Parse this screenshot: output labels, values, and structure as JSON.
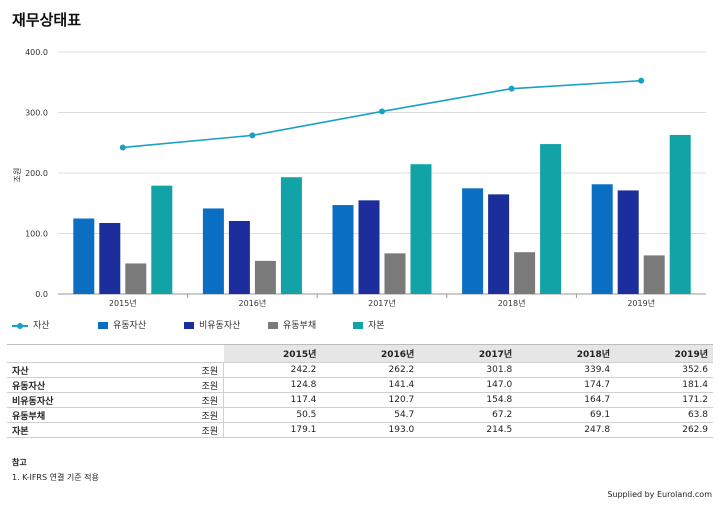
{
  "title": "재무상태표",
  "chart_data": {
    "type": "bar",
    "categories": [
      "2015년",
      "2016년",
      "2017년",
      "2018년",
      "2019년"
    ],
    "ylabel": "조원",
    "ylim": [
      0,
      400
    ],
    "yticks": [
      "0.0",
      "100.0",
      "200.0",
      "300.0",
      "400.0"
    ],
    "grid": true,
    "legend_position": "bottom",
    "line_series": {
      "name": "자산",
      "color": "#1aa0c4",
      "values": [
        242.2,
        262.2,
        301.8,
        339.4,
        352.6
      ]
    },
    "series": [
      {
        "name": "유동자산",
        "color": "#0a6fc2",
        "values": [
          124.8,
          141.4,
          147.0,
          174.7,
          181.4
        ]
      },
      {
        "name": "비유동자산",
        "color": "#1c2e9b",
        "values": [
          117.4,
          120.7,
          154.8,
          164.7,
          171.2
        ]
      },
      {
        "name": "유동부채",
        "color": "#7a7a7a",
        "values": [
          50.5,
          54.7,
          67.2,
          69.1,
          63.8
        ]
      },
      {
        "name": "자본",
        "color": "#11a3a6",
        "values": [
          179.1,
          193.0,
          214.5,
          247.8,
          262.9
        ]
      }
    ]
  },
  "table": {
    "headers": [
      "2015년",
      "2016년",
      "2017년",
      "2018년",
      "2019년"
    ],
    "rows": [
      {
        "label": "자산",
        "unit": "조원",
        "values": [
          "242.2",
          "262.2",
          "301.8",
          "339.4",
          "352.6"
        ]
      },
      {
        "label": "유동자산",
        "unit": "조원",
        "values": [
          "124.8",
          "141.4",
          "147.0",
          "174.7",
          "181.4"
        ]
      },
      {
        "label": "비유동자산",
        "unit": "조원",
        "values": [
          "117.4",
          "120.7",
          "154.8",
          "164.7",
          "171.2"
        ]
      },
      {
        "label": "유동부채",
        "unit": "조원",
        "values": [
          "50.5",
          "54.7",
          "67.2",
          "69.1",
          "63.8"
        ]
      },
      {
        "label": "자본",
        "unit": "조원",
        "values": [
          "179.1",
          "193.0",
          "214.5",
          "247.8",
          "262.9"
        ]
      }
    ]
  },
  "notes": {
    "heading": "참고",
    "items": [
      "1. K-IFRS 연결 기준 적용"
    ]
  },
  "footer": {
    "supplied": "Supplied by Euroland.com"
  }
}
